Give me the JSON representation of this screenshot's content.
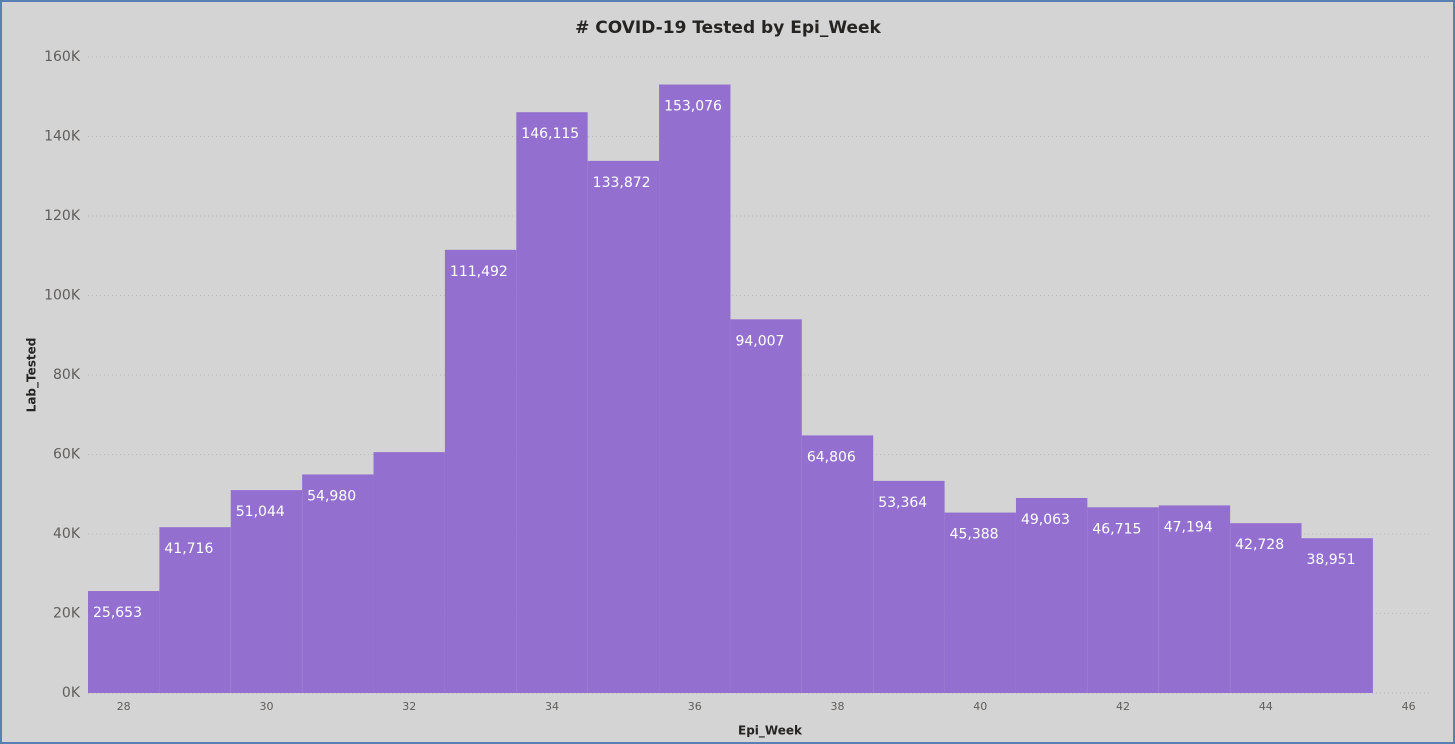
{
  "chart_data": {
    "type": "bar",
    "title": "# COVID-19 Tested by Epi_Week",
    "x_label": "Epi_Week",
    "y_label": "Lab_Tested",
    "x": [
      28,
      29,
      30,
      31,
      32,
      33,
      34,
      35,
      36,
      37,
      38,
      39,
      40,
      41,
      42,
      43,
      44,
      45
    ],
    "values": [
      25653,
      41716,
      51044,
      54980,
      60600,
      111492,
      146115,
      133872,
      153076,
      94007,
      64806,
      53364,
      45388,
      49063,
      46715,
      47194,
      42728,
      38951
    ],
    "value_labels": [
      "25,653",
      "41,716",
      "51,044",
      "54,980",
      null,
      "111,492",
      "146,115",
      "133,872",
      "153,076",
      "94,007",
      "64,806",
      "53,364",
      "45,388",
      "49,063",
      "46,715",
      "47,194",
      "42,728",
      "38,951"
    ],
    "color": "#9370cf",
    "xlim": [
      27.5,
      46.3
    ],
    "xticks": [
      28,
      30,
      32,
      34,
      36,
      38,
      40,
      42,
      44,
      46
    ],
    "ylim": [
      0,
      160000
    ],
    "yticks": [
      {
        "value": 0,
        "label": "0K"
      },
      {
        "value": 20000,
        "label": "20K"
      },
      {
        "value": 40000,
        "label": "40K"
      },
      {
        "value": 60000,
        "label": "60K"
      },
      {
        "value": 80000,
        "label": "80K"
      },
      {
        "value": 100000,
        "label": "100K"
      },
      {
        "value": 120000,
        "label": "120K"
      },
      {
        "value": 140000,
        "label": "140K"
      },
      {
        "value": 160000,
        "label": "160K"
      }
    ],
    "grid": true
  }
}
